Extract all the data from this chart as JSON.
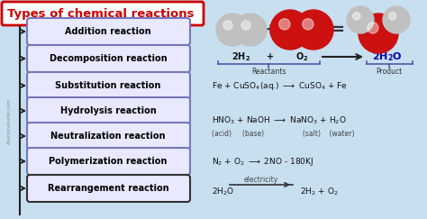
{
  "title": "Types of chemical reactions",
  "title_color": "#cc0000",
  "title_bg": "#ffffff",
  "title_border": "#cc0000",
  "bg_color": "#c8dff0",
  "reaction_labels": [
    "Addition reaction",
    "Decomposition reaction",
    "Substitution reaction",
    "Hydrolysis reaction",
    "Neutralization reaction",
    "Polymerization reaction",
    "Rearrangement reaction"
  ],
  "label_box_color": "#e8e8ff",
  "label_box_border": "#7777bb",
  "label_text_color": "#000000",
  "arrow_color": "#222222",
  "sidebar_color": "#222222",
  "watermark": "chemicalnote.com",
  "gray_ball": "#c0c0c0",
  "red_ball": "#cc1111",
  "brace_color": "#5555aa",
  "eq_color": "#111111",
  "eq2h2o_color": "#0000aa"
}
